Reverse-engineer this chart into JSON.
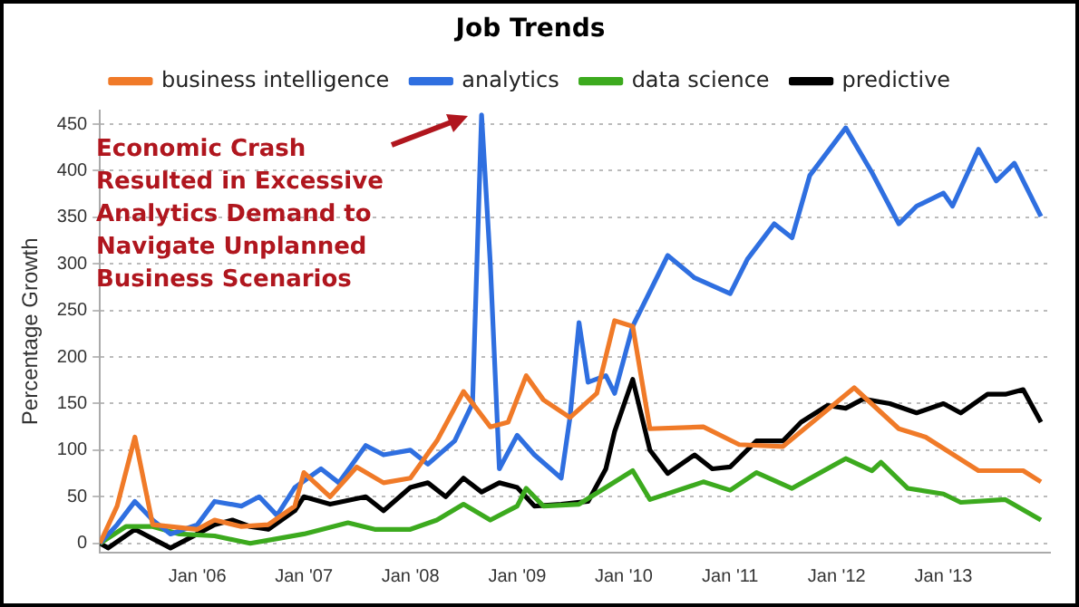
{
  "chart_data": {
    "type": "line",
    "title": "Job Trends",
    "ylabel": "Percentage Growth",
    "legend": "top",
    "grid": "y",
    "marker": "none",
    "line_style": "solid",
    "xlim": [
      "2005-02",
      "2014-01"
    ],
    "xticks": [
      {
        "value": "2006-01",
        "label": "Jan '06"
      },
      {
        "value": "2007-01",
        "label": "Jan '07"
      },
      {
        "value": "2008-01",
        "label": "Jan '08"
      },
      {
        "value": "2009-01",
        "label": "Jan '09"
      },
      {
        "value": "2010-01",
        "label": "Jan '10"
      },
      {
        "value": "2011-01",
        "label": "Jan '11"
      },
      {
        "value": "2012-01",
        "label": "Jan '12"
      },
      {
        "value": "2013-01",
        "label": "Jan '13"
      }
    ],
    "ylim": [
      -10,
      465
    ],
    "yticks": [
      0,
      50,
      100,
      150,
      200,
      250,
      300,
      350,
      400,
      450
    ],
    "annotations": [
      "Economic Crash Resulted in Excessive Analytics Demand to Navigate Unplanned Business Scenarios"
    ],
    "series": [
      {
        "name": "business intelligence",
        "color": "#f07a28",
        "x": [
          "2005-02",
          "2005-04",
          "2005-06",
          "2005-08",
          "2006-01",
          "2006-03",
          "2006-06",
          "2006-09",
          "2006-12",
          "2007-01",
          "2007-04",
          "2007-07",
          "2007-10",
          "2008-01",
          "2008-04",
          "2008-07",
          "2008-10",
          "2008-12",
          "2009-02",
          "2009-04",
          "2009-07",
          "2009-10",
          "2009-12",
          "2010-02",
          "2010-04",
          "2010-10",
          "2011-02",
          "2011-07",
          "2012-03",
          "2012-08",
          "2012-11",
          "2013-05",
          "2013-10",
          "2013-12"
        ],
        "values": [
          0,
          40,
          114,
          20,
          15,
          25,
          18,
          20,
          40,
          76,
          50,
          82,
          65,
          70,
          110,
          163,
          125,
          130,
          180,
          154,
          135,
          161,
          239,
          233,
          123,
          125,
          106,
          104,
          167,
          123,
          114,
          78,
          78,
          66
        ]
      },
      {
        "name": "analytics",
        "color": "#2f6fe0",
        "x": [
          "2005-02",
          "2005-04",
          "2005-06",
          "2005-08",
          "2005-10",
          "2006-01",
          "2006-03",
          "2006-06",
          "2006-08",
          "2006-10",
          "2006-12",
          "2007-03",
          "2007-05",
          "2007-08",
          "2007-10",
          "2008-01",
          "2008-03",
          "2008-06",
          "2008-08",
          "2008-09",
          "2008-10",
          "2008-11",
          "2009-01",
          "2009-03",
          "2009-06",
          "2009-07",
          "2009-08",
          "2009-09",
          "2009-11",
          "2009-12",
          "2010-02",
          "2010-06",
          "2010-09",
          "2011-01",
          "2011-03",
          "2011-06",
          "2011-08",
          "2011-10",
          "2012-02",
          "2012-05",
          "2012-08",
          "2012-10",
          "2013-01",
          "2013-02",
          "2013-05",
          "2013-07",
          "2013-09",
          "2013-12"
        ],
        "values": [
          0,
          20,
          45,
          25,
          10,
          20,
          45,
          40,
          50,
          30,
          60,
          80,
          65,
          105,
          95,
          100,
          85,
          110,
          150,
          460,
          300,
          80,
          116,
          95,
          70,
          135,
          237,
          173,
          180,
          161,
          233,
          309,
          285,
          268,
          305,
          343,
          328,
          395,
          446,
          398,
          343,
          362,
          376,
          362,
          423,
          389,
          408,
          351
        ]
      },
      {
        "name": "data science",
        "color": "#3caa1e",
        "x": [
          "2005-02",
          "2005-05",
          "2005-08",
          "2005-11",
          "2006-03",
          "2006-07",
          "2006-10",
          "2007-01",
          "2007-06",
          "2007-09",
          "2008-01",
          "2008-04",
          "2008-07",
          "2008-10",
          "2009-01",
          "2009-02",
          "2009-04",
          "2009-08",
          "2010-02",
          "2010-04",
          "2010-10",
          "2011-01",
          "2011-04",
          "2011-08",
          "2012-02",
          "2012-05",
          "2012-06",
          "2012-09",
          "2013-01",
          "2013-03",
          "2013-08",
          "2013-12"
        ],
        "values": [
          0,
          18,
          18,
          10,
          8,
          0,
          5,
          10,
          22,
          15,
          15,
          25,
          42,
          25,
          40,
          59,
          40,
          42,
          78,
          47,
          66,
          57,
          76,
          59,
          91,
          78,
          87,
          59,
          53,
          44,
          47,
          25
        ]
      },
      {
        "name": "predictive",
        "color": "#000000",
        "x": [
          "2005-02",
          "2005-03",
          "2005-06",
          "2005-08",
          "2005-10",
          "2005-12",
          "2006-03",
          "2006-05",
          "2006-07",
          "2006-09",
          "2006-12",
          "2007-01",
          "2007-04",
          "2007-08",
          "2007-10",
          "2008-01",
          "2008-03",
          "2008-05",
          "2008-07",
          "2008-09",
          "2008-11",
          "2009-01",
          "2009-03",
          "2009-06",
          "2009-09",
          "2009-11",
          "2009-12",
          "2010-02",
          "2010-04",
          "2010-06",
          "2010-09",
          "2010-11",
          "2011-01",
          "2011-04",
          "2011-07",
          "2011-09",
          "2011-12",
          "2012-02",
          "2012-04",
          "2012-07",
          "2012-10",
          "2013-01",
          "2013-03",
          "2013-06",
          "2013-08",
          "2013-10",
          "2013-12"
        ],
        "values": [
          0,
          -5,
          15,
          5,
          -5,
          5,
          20,
          25,
          18,
          15,
          35,
          50,
          42,
          50,
          35,
          60,
          65,
          50,
          70,
          55,
          65,
          60,
          40,
          42,
          45,
          80,
          120,
          176,
          100,
          75,
          95,
          80,
          82,
          110,
          110,
          130,
          148,
          145,
          155,
          150,
          140,
          150,
          140,
          160,
          160,
          165,
          130
        ]
      }
    ]
  }
}
